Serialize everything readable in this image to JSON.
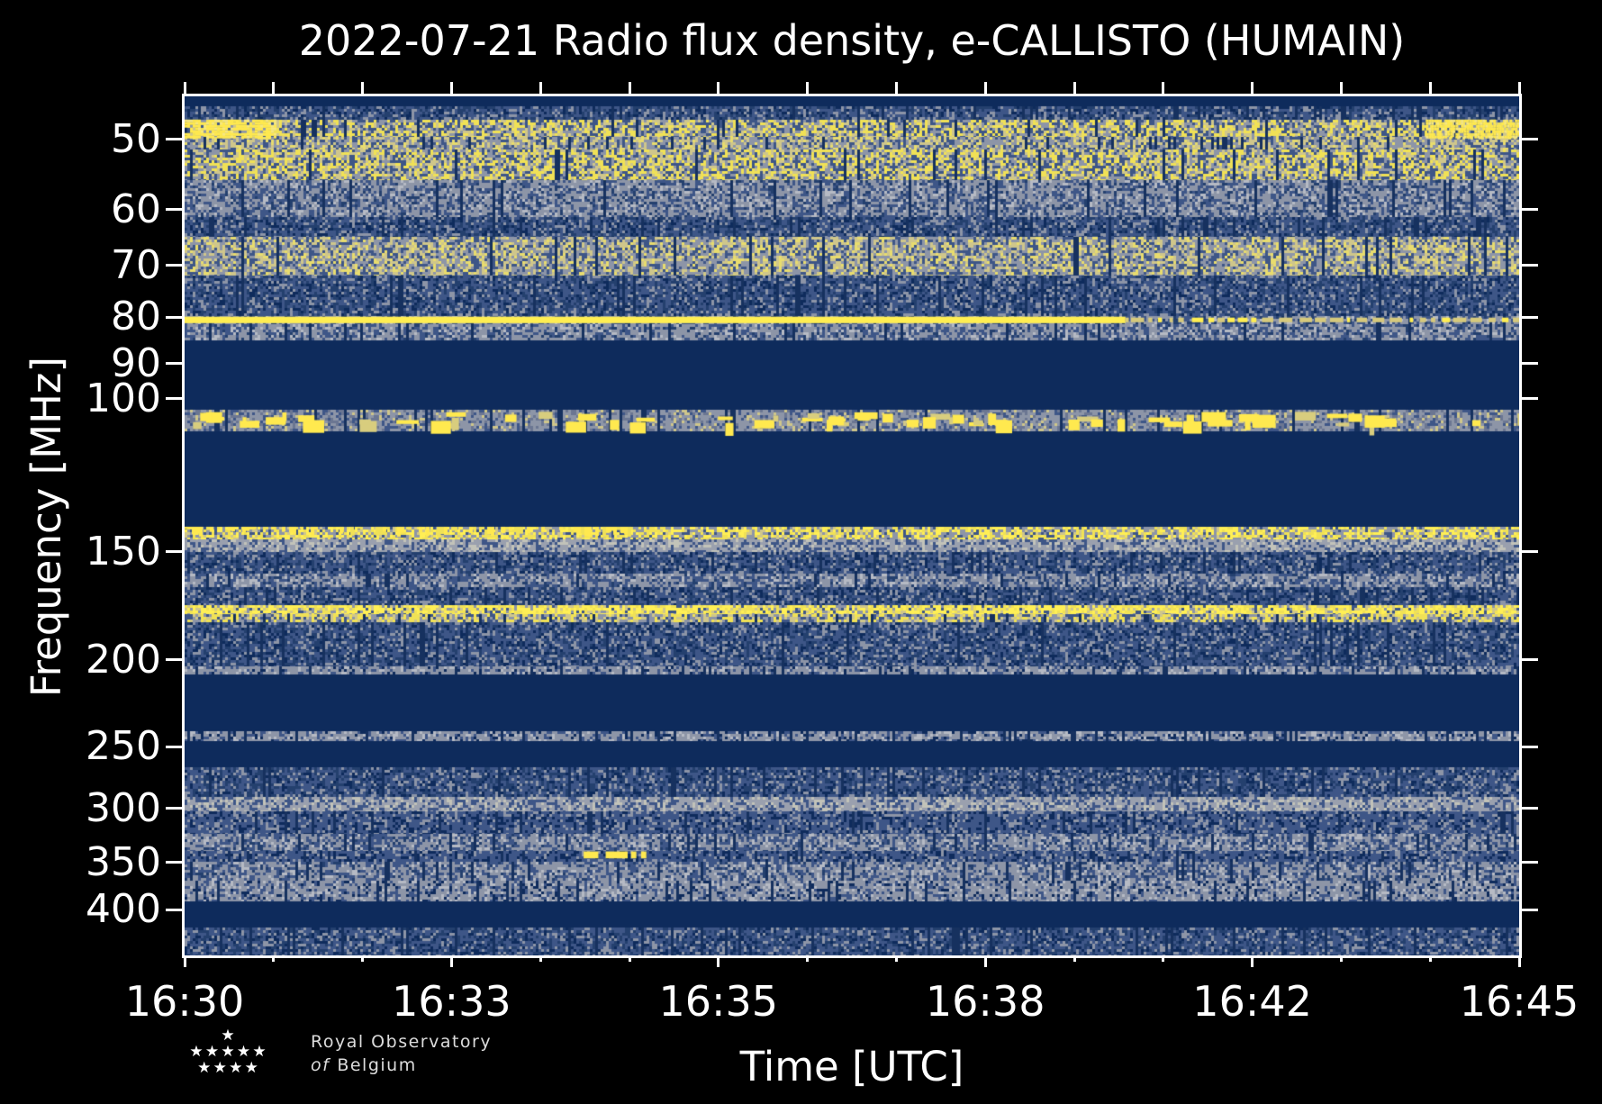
{
  "title": "2022-07-21 Radio flux density, e-CALLISTO (HUMAIN)",
  "axes": {
    "x": {
      "label": "Time [UTC]",
      "ticks": [
        {
          "label": "16:30",
          "pos": 0.0
        },
        {
          "label": "16:33",
          "pos": 0.2
        },
        {
          "label": "16:35",
          "pos": 0.4
        },
        {
          "label": "16:38",
          "pos": 0.6
        },
        {
          "label": "16:42",
          "pos": 0.8
        },
        {
          "label": "16:45",
          "pos": 1.0
        }
      ],
      "minor_divisions": 15
    },
    "y": {
      "label": "Frequency [MHz]",
      "ticks": [
        {
          "label": "50",
          "pos": 0.05
        },
        {
          "label": "60",
          "pos": 0.132
        },
        {
          "label": "70",
          "pos": 0.197
        },
        {
          "label": "80",
          "pos": 0.257
        },
        {
          "label": "90",
          "pos": 0.311
        },
        {
          "label": "100",
          "pos": 0.352
        },
        {
          "label": "150",
          "pos": 0.53
        },
        {
          "label": "200",
          "pos": 0.656
        },
        {
          "label": "250",
          "pos": 0.757
        },
        {
          "label": "300",
          "pos": 0.829
        },
        {
          "label": "350",
          "pos": 0.892
        },
        {
          "label": "400",
          "pos": 0.947
        }
      ]
    }
  },
  "logo": {
    "line1": "Royal Observatory",
    "line2_italic": "of",
    "line2_rest": "Belgium",
    "star_rows": [
      1,
      5,
      4
    ]
  },
  "colors": {
    "background": "#000000",
    "text": "#ffffff",
    "spine": "#ffffff",
    "navy": "#0e2b5c",
    "blue_mid": "#3e5687",
    "blue_dark": "#24406e",
    "gray": "#8d95a7",
    "gray_light": "#b6bac4",
    "pale_yellow": "#cfc68b",
    "yellow": "#f0e156",
    "bright_yellow": "#ffee52"
  },
  "chart_data": {
    "type": "heatmap",
    "title": "2022-07-21 Radio flux density, e-CALLISTO (HUMAIN)",
    "xlabel": "Time [UTC]",
    "ylabel": "Frequency [MHz]",
    "x_range": [
      "16:30",
      "16:45"
    ],
    "x_tick_labels": [
      "16:30",
      "16:33",
      "16:35",
      "16:38",
      "16:42",
      "16:45"
    ],
    "y_tick_labels": [
      "50",
      "60",
      "70",
      "80",
      "90",
      "100",
      "150",
      "200",
      "250",
      "300",
      "350",
      "400"
    ],
    "legend": "none",
    "grid": false,
    "bands": [
      {
        "y0": 0.0,
        "y1": 0.012,
        "p": "navy"
      },
      {
        "y0": 0.012,
        "y1": 0.027,
        "p": "blue"
      },
      {
        "y0": 0.027,
        "y1": 0.047,
        "p": "yellowMid"
      },
      {
        "y0": 0.047,
        "y1": 0.062,
        "p": "grayYellow"
      },
      {
        "y0": 0.062,
        "y1": 0.098,
        "p": "yellowMid"
      },
      {
        "y0": 0.098,
        "y1": 0.14,
        "p": "gray"
      },
      {
        "y0": 0.14,
        "y1": 0.163,
        "p": "blue"
      },
      {
        "y0": 0.163,
        "y1": 0.209,
        "p": "grayYellow"
      },
      {
        "y0": 0.209,
        "y1": 0.256,
        "p": "blue"
      },
      {
        "y0": 0.256,
        "y1": 0.284,
        "p": "gray"
      },
      {
        "y0": 0.284,
        "y1": 0.365,
        "p": "navy"
      },
      {
        "y0": 0.365,
        "y1": 0.39,
        "p": "rfiBase"
      },
      {
        "y0": 0.39,
        "y1": 0.501,
        "p": "navy"
      },
      {
        "y0": 0.501,
        "y1": 0.516,
        "p": "yellowStrong"
      },
      {
        "y0": 0.516,
        "y1": 0.53,
        "p": "paleGray"
      },
      {
        "y0": 0.53,
        "y1": 0.556,
        "p": "blue"
      },
      {
        "y0": 0.556,
        "y1": 0.571,
        "p": "gray"
      },
      {
        "y0": 0.571,
        "y1": 0.592,
        "p": "blue"
      },
      {
        "y0": 0.592,
        "y1": 0.603,
        "p": "yellowDense"
      },
      {
        "y0": 0.603,
        "y1": 0.612,
        "p": "yellowMid"
      },
      {
        "y0": 0.612,
        "y1": 0.664,
        "p": "blue"
      },
      {
        "y0": 0.664,
        "y1": 0.673,
        "p": "grayDense"
      },
      {
        "y0": 0.673,
        "y1": 0.739,
        "p": "navy"
      },
      {
        "y0": 0.739,
        "y1": 0.751,
        "p": "grayDense"
      },
      {
        "y0": 0.751,
        "y1": 0.781,
        "p": "navy"
      },
      {
        "y0": 0.781,
        "y1": 0.816,
        "p": "blue"
      },
      {
        "y0": 0.816,
        "y1": 0.832,
        "p": "paleGray"
      },
      {
        "y0": 0.832,
        "y1": 0.858,
        "p": "blueSparse"
      },
      {
        "y0": 0.858,
        "y1": 0.878,
        "p": "gray"
      },
      {
        "y0": 0.878,
        "y1": 0.891,
        "p": "blueSparse"
      },
      {
        "y0": 0.891,
        "y1": 0.913,
        "p": "gray"
      },
      {
        "y0": 0.913,
        "y1": 0.937,
        "p": "grayDense"
      },
      {
        "y0": 0.937,
        "y1": 0.967,
        "p": "navy"
      },
      {
        "y0": 0.967,
        "y1": 1.0,
        "p": "blue"
      }
    ],
    "palettes": {
      "navy": [
        [
          "#0e2b5c",
          1.0
        ]
      ],
      "blue": [
        [
          "#3e5687",
          0.42
        ],
        [
          "#24406e",
          0.25
        ],
        [
          "#8d95a7",
          0.18
        ],
        [
          "#0e2b5c",
          0.15
        ]
      ],
      "blueSparse": [
        [
          "#3e5687",
          0.6
        ],
        [
          "#0e2b5c",
          0.22
        ],
        [
          "#8d95a7",
          0.18
        ]
      ],
      "gray": [
        [
          "#8d95a7",
          0.45
        ],
        [
          "#3e5687",
          0.3
        ],
        [
          "#24406e",
          0.12
        ],
        [
          "#b6bac4",
          0.13
        ]
      ],
      "grayDense": [
        [
          "#8d95a7",
          0.55
        ],
        [
          "#b6bac4",
          0.15
        ],
        [
          "#3e5687",
          0.2
        ],
        [
          "#0e2b5c",
          0.1
        ]
      ],
      "paleGray": [
        [
          "#9aa0ae",
          0.5
        ],
        [
          "#c2c3b9",
          0.2
        ],
        [
          "#3e5687",
          0.3
        ]
      ],
      "grayYellow": [
        [
          "#8d95a7",
          0.35
        ],
        [
          "#cfc68b",
          0.25
        ],
        [
          "#e8dc6e",
          0.15
        ],
        [
          "#3e5687",
          0.25
        ]
      ],
      "yellowMid": [
        [
          "#f0e156",
          0.3
        ],
        [
          "#cfc68b",
          0.2
        ],
        [
          "#8d95a7",
          0.25
        ],
        [
          "#3e5687",
          0.25
        ]
      ],
      "yellowStrong": [
        [
          "#ffef55",
          0.28
        ],
        [
          "#f0e156",
          0.22
        ],
        [
          "#8d95a7",
          0.28
        ],
        [
          "#cfc68b",
          0.12
        ],
        [
          "#3e5687",
          0.1
        ]
      ],
      "yellowDense": [
        [
          "#ffef55",
          0.45
        ],
        [
          "#f0e156",
          0.25
        ],
        [
          "#cfc68b",
          0.12
        ],
        [
          "#8d95a7",
          0.1
        ],
        [
          "#3e5687",
          0.08
        ]
      ],
      "rfiBase": [
        [
          "#8d95a7",
          0.5
        ],
        [
          "#6b7692",
          0.2
        ],
        [
          "#3e5687",
          0.2
        ],
        [
          "#cfc68b",
          0.1
        ]
      ]
    },
    "features": [
      {
        "type": "hline",
        "y": 0.2565,
        "h": 0.0075,
        "x0": 0.0,
        "x1": 0.705,
        "color": "#ffee52",
        "dash_to": 1.0,
        "dash_color": "#d6c97c"
      },
      {
        "type": "blob",
        "x0": 0.0,
        "x1": 0.068,
        "y0": 0.027,
        "y1": 0.047,
        "color": "#ffe94f"
      },
      {
        "type": "blob",
        "x0": 0.93,
        "x1": 1.0,
        "y0": 0.027,
        "y1": 0.047,
        "color": "#ffe94f"
      },
      {
        "type": "rfi_blobs",
        "y0": 0.367,
        "y1": 0.389,
        "count": 70,
        "color": "#ffe94f"
      },
      {
        "type": "boost",
        "x0": 0.0,
        "x1": 0.34,
        "y0": 0.501,
        "y1": 0.513,
        "coverage": 0.5,
        "color": "#ffe94f"
      },
      {
        "type": "dashes",
        "y": 0.879,
        "h": 0.008,
        "color": "#ffe94f",
        "segments": [
          [
            0.299,
            0.31
          ],
          [
            0.3155,
            0.332
          ],
          [
            0.3345,
            0.3385
          ],
          [
            0.342,
            0.346
          ]
        ]
      }
    ]
  }
}
